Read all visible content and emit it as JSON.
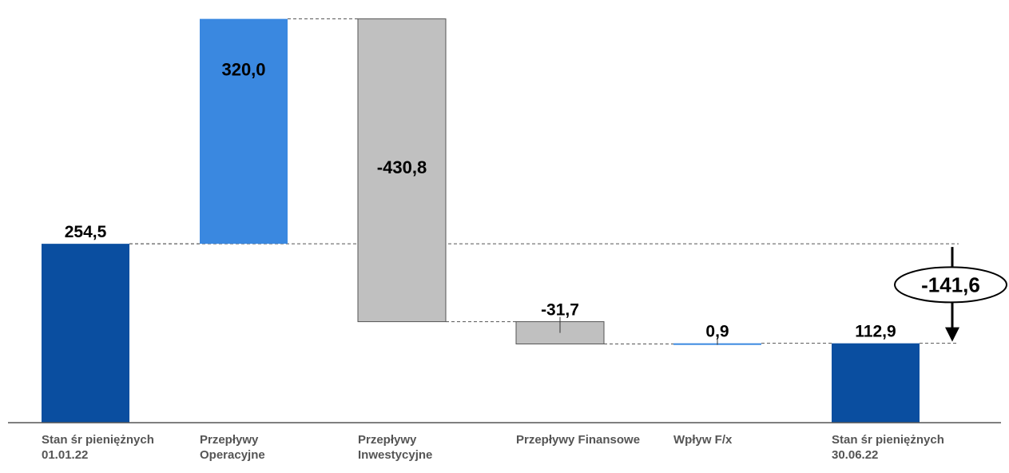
{
  "chart_data": {
    "type": "waterfall",
    "title": "",
    "xlabel": "",
    "ylabel": "",
    "categories": [
      [
        "Stan śr pieniężnych",
        "01.01.22"
      ],
      [
        "Przepływy",
        "Operacyjne"
      ],
      [
        "Przepływy",
        "Inwestycyjne"
      ],
      [
        "Przepływy Finansowe"
      ],
      [
        "Wpływ F/x"
      ],
      [
        "Stan śr pieniężnych",
        "30.06.22"
      ]
    ],
    "values": [
      254.5,
      320.0,
      -430.8,
      -31.7,
      0.9,
      112.9
    ],
    "value_labels": [
      "254,5",
      "320,0",
      "-430,8",
      "-31,7",
      "0,9",
      "112,9"
    ],
    "bar_kinds": [
      "total",
      "delta",
      "delta",
      "delta",
      "delta",
      "total"
    ],
    "net_change": {
      "value": -141.6,
      "label": "-141,6"
    },
    "ylim": [
      0,
      590
    ],
    "grid": false,
    "legend": "none",
    "colors": {
      "total": "#0a4ea0",
      "positive": "#3a88e0",
      "negative": "#c0c0c0",
      "outline": "#555555",
      "connector": "#555555",
      "text": "#000000",
      "category_text": "#555555"
    }
  }
}
